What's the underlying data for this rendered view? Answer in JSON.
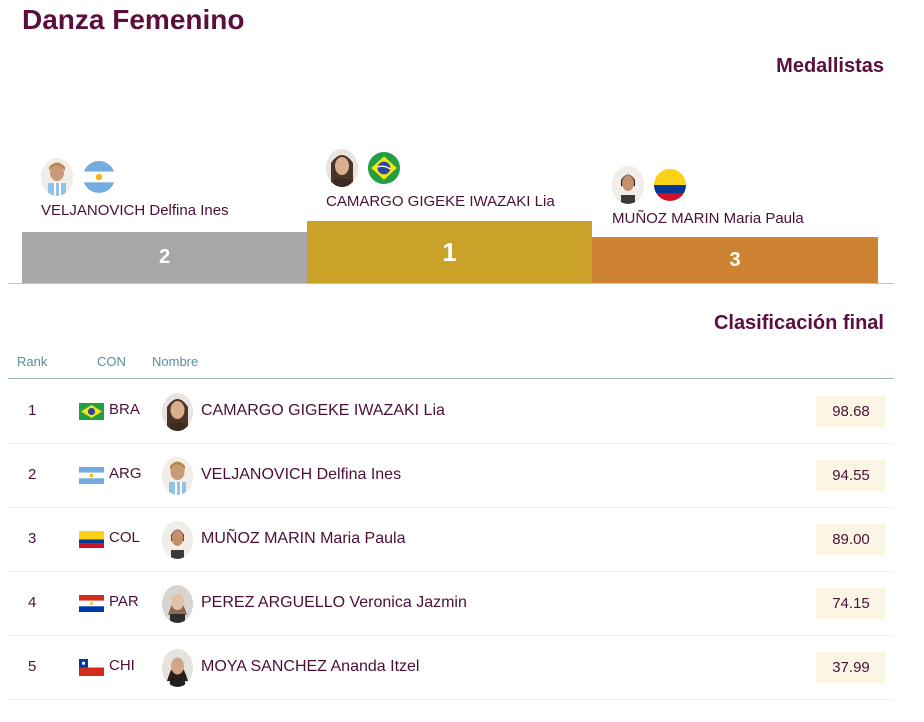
{
  "page": {
    "title": "Danza Femenino"
  },
  "medallists": {
    "heading": "Medallistas",
    "first": {
      "place": "1",
      "name": "CAMARGO GIGEKE IWAZAKI Lia",
      "flag_icon": "flag-bra-icon",
      "color": "#c9a227"
    },
    "second": {
      "place": "2",
      "name": "VELJANOVICH Delfina Ines",
      "flag_icon": "flag-arg-icon",
      "color": "#a7a7aa"
    },
    "third": {
      "place": "3",
      "name": "MUÑOZ MARIN Maria Paula",
      "flag_icon": "flag-col-icon",
      "color": "#cd8332"
    }
  },
  "standings": {
    "heading": "Clasificación final",
    "columns": {
      "rank": "Rank",
      "con": "CON",
      "name": "Nombre"
    },
    "rows": [
      {
        "rank": "1",
        "con": "BRA",
        "name": "CAMARGO GIGEKE IWAZAKI Lia",
        "score": "98.68"
      },
      {
        "rank": "2",
        "con": "ARG",
        "name": "VELJANOVICH Delfina Ines",
        "score": "94.55"
      },
      {
        "rank": "3",
        "con": "COL",
        "name": "MUÑOZ MARIN Maria Paula",
        "score": "89.00"
      },
      {
        "rank": "4",
        "con": "PAR",
        "name": "PEREZ ARGUELLO Veronica Jazmin",
        "score": "74.15"
      },
      {
        "rank": "5",
        "con": "CHI",
        "name": "MOYA SANCHEZ Ananda Itzel",
        "score": "37.99"
      }
    ]
  }
}
